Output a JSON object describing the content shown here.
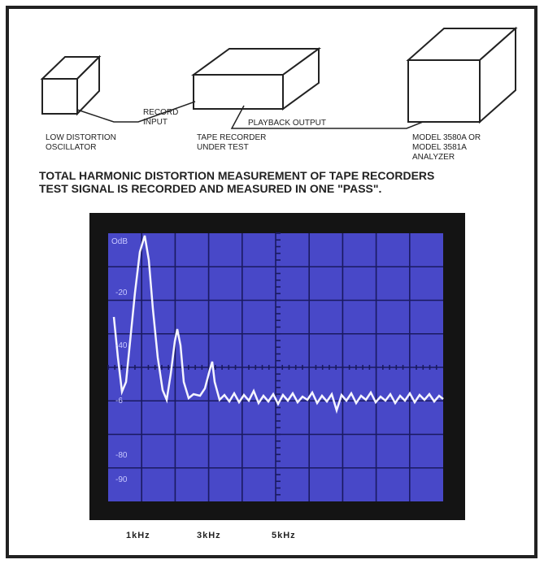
{
  "diagram": {
    "oscillator_label": [
      "LOW DISTORTION",
      "OSCILLATOR"
    ],
    "record_input_label": [
      "RECORD",
      "INPUT"
    ],
    "tape_recorder_label": [
      "TAPE RECORDER",
      "UNDER TEST"
    ],
    "playback_output_label": "PLAYBACK OUTPUT",
    "analyzer_label": [
      "MODEL 3580A OR",
      "MODEL 3581A",
      "ANALYZER"
    ]
  },
  "caption": [
    "TOTAL HARMONIC DISTORTION MEASUREMENT OF  TAPE RECORDERS",
    "TEST SIGNAL IS RECORDED AND MEASURED IN ONE \"PASS\"."
  ],
  "screen": {
    "y_labels": [
      "OdB",
      "-20",
      "-40",
      "-6",
      "-80",
      "-90"
    ],
    "x_labels": [
      "1kHz",
      "3kHz",
      "5kHz"
    ]
  }
}
